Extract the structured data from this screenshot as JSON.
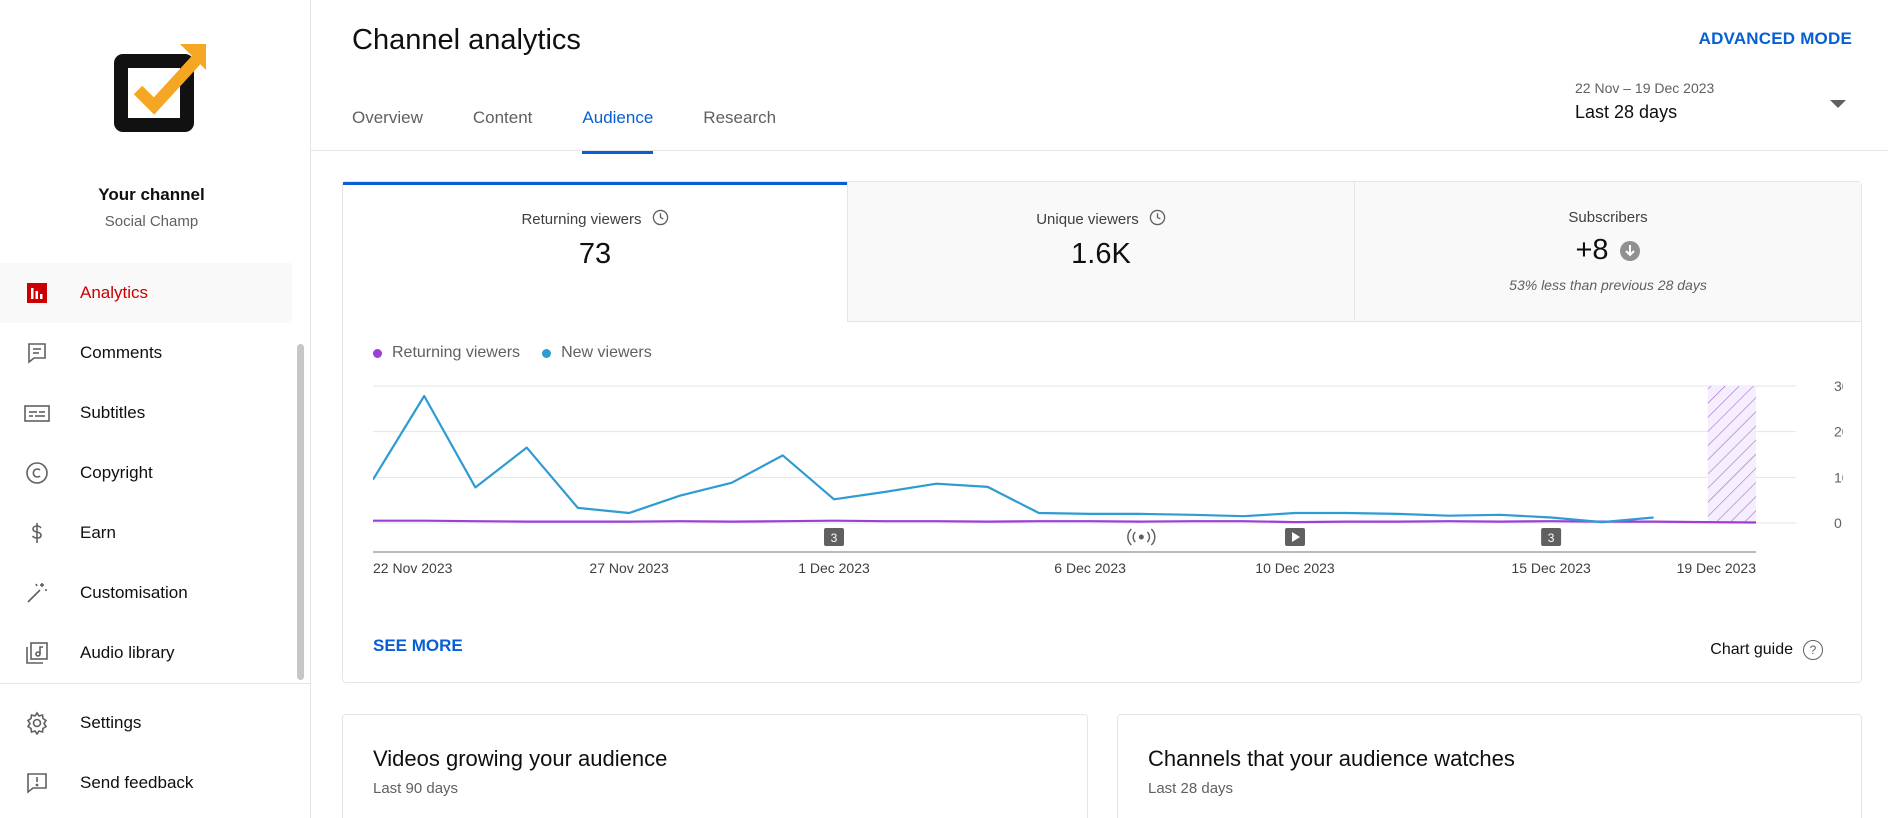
{
  "sidebar": {
    "channel_title": "Your channel",
    "channel_name": "Social Champ",
    "items": [
      {
        "label": "Analytics",
        "icon": "analytics-icon",
        "active": true
      },
      {
        "label": "Comments",
        "icon": "comments-icon"
      },
      {
        "label": "Subtitles",
        "icon": "subtitles-icon"
      },
      {
        "label": "Copyright",
        "icon": "copyright-icon"
      },
      {
        "label": "Earn",
        "icon": "dollar-icon"
      },
      {
        "label": "Customisation",
        "icon": "magic-wand-icon"
      },
      {
        "label": "Audio library",
        "icon": "audio-library-icon"
      }
    ],
    "bottom_items": [
      {
        "label": "Settings",
        "icon": "gear-icon"
      },
      {
        "label": "Send feedback",
        "icon": "feedback-icon"
      }
    ]
  },
  "header": {
    "title": "Channel analytics",
    "advanced_mode": "ADVANCED MODE",
    "tabs": [
      {
        "label": "Overview"
      },
      {
        "label": "Content"
      },
      {
        "label": "Audience",
        "active": true
      },
      {
        "label": "Research"
      }
    ],
    "date_range": {
      "range": "22 Nov – 19 Dec 2023",
      "label": "Last 28 days"
    }
  },
  "metrics": [
    {
      "label": "Returning viewers",
      "value": "73",
      "active": true
    },
    {
      "label": "Unique viewers",
      "value": "1.6K"
    },
    {
      "label": "Subscribers",
      "value": "+8",
      "note": "53% less than previous 28 days"
    }
  ],
  "chart_data": {
    "type": "line",
    "x": [
      "22 Nov",
      "23 Nov",
      "24 Nov",
      "25 Nov",
      "26 Nov",
      "27 Nov",
      "28 Nov",
      "29 Nov",
      "30 Nov",
      "1 Dec",
      "2 Dec",
      "3 Dec",
      "4 Dec",
      "5 Dec",
      "6 Dec",
      "7 Dec",
      "8 Dec",
      "9 Dec",
      "10 Dec",
      "11 Dec",
      "12 Dec",
      "13 Dec",
      "14 Dec",
      "15 Dec",
      "16 Dec",
      "17 Dec",
      "18 Dec",
      "19 Dec"
    ],
    "x_tick_labels": [
      "22 Nov 2023",
      "27 Nov 2023",
      "1 Dec 2023",
      "6 Dec 2023",
      "10 Dec 2023",
      "15 Dec 2023",
      "19 Dec 2023"
    ],
    "series": [
      {
        "name": "Returning viewers",
        "color": "#9c3fd8",
        "values": [
          5,
          5,
          4,
          3,
          3,
          3,
          4,
          3,
          4,
          5,
          4,
          4,
          3,
          4,
          4,
          3,
          4,
          4,
          2,
          3,
          3,
          4,
          3,
          4,
          3,
          3,
          2,
          1
        ]
      },
      {
        "name": "New viewers",
        "color": "#2f9bd3",
        "values": [
          95,
          278,
          78,
          165,
          33,
          22,
          60,
          88,
          148,
          52,
          68,
          86,
          79,
          22,
          20,
          20,
          18,
          15,
          22,
          22,
          20,
          16,
          18,
          12,
          2,
          12,
          null,
          null
        ]
      }
    ],
    "ylim": [
      0,
      300
    ],
    "yticks": [
      "300",
      "200",
      "100",
      "0"
    ],
    "grid": true,
    "legend": "top-left",
    "markers": [
      {
        "x": "1 Dec",
        "label": "3",
        "icon": "count-badge"
      },
      {
        "x": "7 Dec",
        "label": "",
        "icon": "live-icon"
      },
      {
        "x": "10 Dec",
        "label": "",
        "icon": "play-icon"
      },
      {
        "x": "15 Dec",
        "label": "3",
        "icon": "count-badge"
      }
    ],
    "incomplete_data_from": "18 Dec"
  },
  "card_footer": {
    "see_more": "SEE MORE",
    "chart_guide": "Chart guide",
    "guide_icon": "?"
  },
  "bottom_cards": [
    {
      "title": "Videos growing your audience",
      "sub": "Last 90 days"
    },
    {
      "title": "Channels that your audience watches",
      "sub": "Last 28 days"
    }
  ]
}
